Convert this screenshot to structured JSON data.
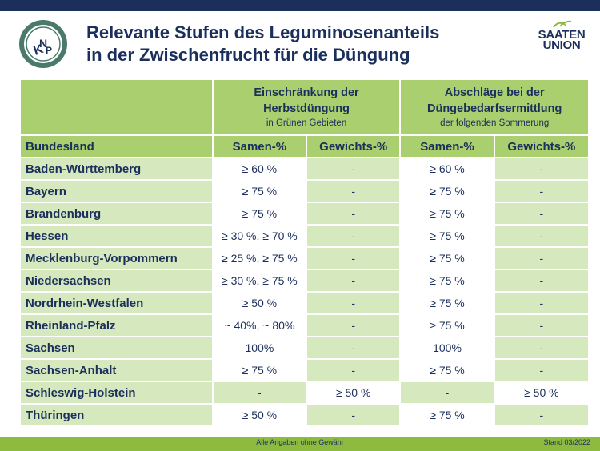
{
  "header": {
    "title_line1": "Relevante Stufen des Leguminosenanteils",
    "title_line2": "in der Zwischenfrucht für die Düngung",
    "logo_left_text": "KNP",
    "logo_right_line1": "SAATEN",
    "logo_right_line2": "UNION"
  },
  "table": {
    "group1": {
      "title_line1": "Einschränkung der",
      "title_line2": "Herbstdüngung",
      "note": "in Grünen Gebieten"
    },
    "group2": {
      "title_line1": "Abschläge bei der",
      "title_line2": "Düngebedarfsermittlung",
      "note": "der folgenden Sommerung"
    },
    "columns": [
      "Bundesland",
      "Samen-%",
      "Gewichts-%",
      "Samen-%",
      "Gewichts-%"
    ],
    "rows": [
      [
        "Baden-Württemberg",
        "≥ 60 %",
        "-",
        "≥ 60 %",
        "-"
      ],
      [
        "Bayern",
        "≥ 75 %",
        "-",
        "≥ 75 %",
        "-"
      ],
      [
        "Brandenburg",
        "≥ 75 %",
        "-",
        "≥ 75 %",
        "-"
      ],
      [
        "Hessen",
        "≥ 30 %, ≥ 70 %",
        "-",
        "≥ 75 %",
        "-"
      ],
      [
        "Mecklenburg-Vorpommern",
        "≥ 25 %, ≥ 75 %",
        "-",
        "≥ 75 %",
        "-"
      ],
      [
        "Niedersachsen",
        "≥ 30 %, ≥ 75 %",
        "-",
        "≥ 75 %",
        "-"
      ],
      [
        "Nordrhein-Westfalen",
        "≥ 50 %",
        "-",
        "≥ 75 %",
        "-"
      ],
      [
        "Rheinland-Pfalz",
        "~ 40%, ~ 80%",
        "-",
        "≥ 75 %",
        "-"
      ],
      [
        "Sachsen",
        "100%",
        "-",
        "100%",
        "-"
      ],
      [
        "Sachsen-Anhalt",
        "≥ 75 %",
        "-",
        "≥ 75 %",
        "-"
      ],
      [
        "Schleswig-Holstein",
        "-",
        "≥ 50 %",
        "-",
        "≥ 50 %"
      ],
      [
        "Thüringen",
        "≥ 50 %",
        "-",
        "≥ 75 %",
        "-"
      ]
    ]
  },
  "footer": {
    "disclaimer": "Alle Angaben ohne Gewähr",
    "stand": "Stand 03/2022"
  },
  "colors": {
    "navy": "#1b2f5c",
    "header_green": "#a9cf6e",
    "cell_green": "#d6e8bd",
    "footer_green": "#8dbb3f"
  }
}
